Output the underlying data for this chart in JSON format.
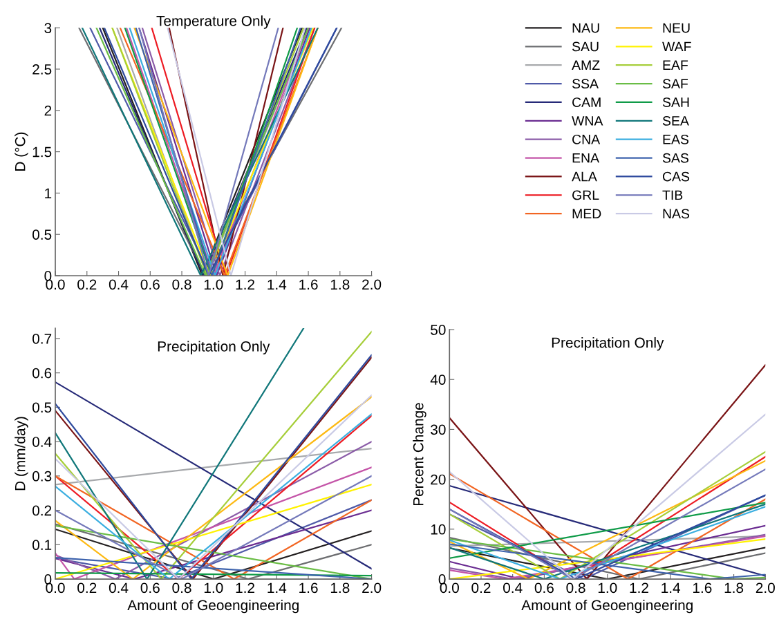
{
  "chart_data": [
    {
      "type": "line",
      "title": "Temperature Only",
      "ylabel": "D (°C)",
      "legend": "right",
      "grid": false,
      "xlim": [
        0,
        2
      ],
      "ylim": [
        0,
        3
      ],
      "xticks": [
        {
          "value": 0,
          "label": "0.0"
        },
        {
          "value": 0.2,
          "label": "0.2"
        },
        {
          "value": 0.4,
          "label": "0.4"
        },
        {
          "value": 0.6,
          "label": "0.6"
        },
        {
          "value": 0.8,
          "label": "0.8"
        },
        {
          "value": 1.0,
          "label": "1.0"
        },
        {
          "value": 1.2,
          "label": "1.2"
        },
        {
          "value": 1.4,
          "label": "1.4"
        },
        {
          "value": 1.6,
          "label": "1.6"
        },
        {
          "value": 1.8,
          "label": "1.8"
        },
        {
          "value": 2.0,
          "label": "2.0"
        }
      ],
      "yticks": [
        0,
        0.5,
        1,
        1.5,
        2,
        2.5,
        3
      ],
      "series": [
        {
          "name": "NAU",
          "color": "#231f20",
          "x": [
            0.3,
            0.93,
            1.56
          ],
          "values": [
            3,
            0,
            3
          ]
        },
        {
          "name": "SAU",
          "color": "#6d6e71",
          "x": [
            0.15,
            0.95,
            1.81
          ],
          "values": [
            3,
            0,
            3
          ]
        },
        {
          "name": "AMZ",
          "color": "#a7a9ac",
          "x": [
            0.39,
            0.96,
            1.6
          ],
          "values": [
            3,
            0,
            3
          ]
        },
        {
          "name": "SSA",
          "color": "#4f5aa8",
          "x": [
            0.22,
            0.98,
            1.78
          ],
          "values": [
            3,
            0,
            3
          ]
        },
        {
          "name": "CAM",
          "color": "#262a78",
          "x": [
            0.28,
            0.94,
            1.59
          ],
          "values": [
            3,
            0,
            3
          ]
        },
        {
          "name": "WNA",
          "color": "#6a2c91",
          "x": [
            0.53,
            1.02,
            1.61
          ],
          "values": [
            3,
            0,
            3
          ]
        },
        {
          "name": "CNA",
          "color": "#8b5ca8",
          "x": [
            0.55,
            1.04,
            1.64
          ],
          "values": [
            3,
            0,
            3
          ]
        },
        {
          "name": "ENA",
          "color": "#c455a8",
          "x": [
            0.45,
            1.0,
            1.6
          ],
          "values": [
            3,
            0,
            3
          ]
        },
        {
          "name": "ALA",
          "color": "#7a1416",
          "x": [
            0.72,
            1.06,
            1.44
          ],
          "values": [
            3,
            0,
            3
          ]
        },
        {
          "name": "GRL",
          "color": "#ed1c24",
          "x": [
            0.61,
            1.08,
            1.64
          ],
          "values": [
            3,
            0,
            3
          ]
        },
        {
          "name": "MED",
          "color": "#f26522",
          "x": [
            0.41,
            1.07,
            1.66
          ],
          "values": [
            3,
            0,
            3
          ]
        },
        {
          "name": "NEU",
          "color": "#fdb913",
          "x": [
            0.5,
            1.09,
            1.66
          ],
          "values": [
            3,
            0,
            3
          ]
        },
        {
          "name": "WAF",
          "color": "#fff200",
          "x": [
            0.36,
            0.98,
            1.63
          ],
          "values": [
            3,
            0,
            3
          ]
        },
        {
          "name": "EAF",
          "color": "#a6ce39",
          "x": [
            0.36,
            0.96,
            1.57
          ],
          "values": [
            3,
            0,
            3
          ]
        },
        {
          "name": "SAF",
          "color": "#6abd45",
          "x": [
            0.26,
            0.95,
            1.6
          ],
          "values": [
            3,
            0,
            3
          ]
        },
        {
          "name": "SAH",
          "color": "#0f9b48",
          "x": [
            0.44,
            0.99,
            1.53
          ],
          "values": [
            3,
            0,
            3
          ]
        },
        {
          "name": "SEA",
          "color": "#10777a",
          "x": [
            0.17,
            0.92,
            1.66
          ],
          "values": [
            3,
            0,
            3
          ]
        },
        {
          "name": "EAS",
          "color": "#3aaee0",
          "x": [
            0.47,
            1.01,
            1.62
          ],
          "values": [
            3,
            0,
            3
          ]
        },
        {
          "name": "SAS",
          "color": "#3e63ad",
          "x": [
            0.51,
            0.99,
            1.55
          ],
          "values": [
            3,
            0,
            3
          ]
        },
        {
          "name": "CAS",
          "color": "#2e4a9e",
          "x": [
            0.31,
            0.97,
            1.78
          ],
          "values": [
            3,
            0,
            3
          ]
        },
        {
          "name": "TIB",
          "color": "#7479ba",
          "x": [
            0.53,
            0.97,
            1.41
          ],
          "values": [
            3,
            0,
            3
          ]
        },
        {
          "name": "NAS",
          "color": "#c9cae5",
          "x": [
            0.71,
            1.11,
            1.58
          ],
          "values": [
            3,
            0,
            3
          ]
        }
      ]
    },
    {
      "type": "line",
      "title": "Precipitation Only",
      "xlabel": "Amount of Geoengineering",
      "ylabel": "D (mm/day)",
      "grid": false,
      "xlim": [
        0,
        2
      ],
      "ylim": [
        0,
        0.73
      ],
      "xticks": [
        {
          "value": 0,
          "label": "0.0"
        },
        {
          "value": 0.2,
          "label": "0.2"
        },
        {
          "value": 0.4,
          "label": "0.4"
        },
        {
          "value": 0.6,
          "label": "0.6"
        },
        {
          "value": 0.8,
          "label": "0.8"
        },
        {
          "value": 1.0,
          "label": "1.0"
        },
        {
          "value": 1.2,
          "label": "1.2"
        },
        {
          "value": 1.4,
          "label": "1.4"
        },
        {
          "value": 1.6,
          "label": "1.6"
        },
        {
          "value": 1.8,
          "label": "1.8"
        },
        {
          "value": 2.0,
          "label": "2.0"
        }
      ],
      "yticks": [
        0,
        0.1,
        0.2,
        0.3,
        0.4,
        0.5,
        0.6,
        0.7
      ],
      "series": [
        {
          "color": "#231f20",
          "x": [
            0,
            1.0,
            2
          ],
          "values": [
            0.145,
            0,
            0.14
          ]
        },
        {
          "color": "#6d6e71",
          "x": [
            0,
            1.22,
            2
          ],
          "values": [
            0.16,
            0,
            0.1
          ]
        },
        {
          "color": "#a7a9ac",
          "x": [
            0,
            2
          ],
          "values": [
            0.275,
            0.38
          ]
        },
        {
          "color": "#4f5aa8",
          "x": [
            0,
            0.75,
            2
          ],
          "values": [
            0.06,
            0,
            0.23
          ]
        },
        {
          "color": "#262a78",
          "x": [
            0,
            2
          ],
          "values": [
            0.573,
            0.03
          ]
        },
        {
          "color": "#6a2c91",
          "x": [
            0,
            0.5,
            2
          ],
          "values": [
            0.06,
            0,
            0.2
          ]
        },
        {
          "color": "#8b5ca8",
          "x": [
            0,
            0.38,
            2
          ],
          "values": [
            0.07,
            0,
            0.4
          ]
        },
        {
          "color": "#c455a8",
          "x": [
            0,
            0.12,
            2
          ],
          "values": [
            0.075,
            0,
            0.325
          ]
        },
        {
          "color": "#7a1416",
          "x": [
            0,
            0.87,
            2
          ],
          "values": [
            0.49,
            0,
            0.645
          ]
        },
        {
          "color": "#ed1c24",
          "x": [
            0,
            0.78,
            2
          ],
          "values": [
            0.3,
            0,
            0.475
          ]
        },
        {
          "color": "#f26522",
          "x": [
            0,
            1.13,
            2
          ],
          "values": [
            0.3,
            0,
            0.23
          ]
        },
        {
          "color": "#fdb913",
          "x": [
            0,
            0.49,
            2
          ],
          "values": [
            0.17,
            0,
            0.53
          ]
        },
        {
          "color": "#fff200",
          "x": [
            0,
            2
          ],
          "values": [
            0.0,
            0.275
          ]
        },
        {
          "color": "#a6ce39",
          "x": [
            0,
            0.67,
            2
          ],
          "values": [
            0.365,
            0,
            0.72
          ]
        },
        {
          "color": "#6abd45",
          "x": [
            0,
            2
          ],
          "values": [
            0.155,
            0.0
          ]
        },
        {
          "color": "#0f9b48",
          "x": [
            0,
            2
          ],
          "values": [
            0.018,
            0.01
          ]
        },
        {
          "color": "#10777a",
          "x": [
            0,
            0.58,
            1.57
          ],
          "values": [
            0.425,
            0,
            0.73
          ]
        },
        {
          "color": "#3aaee0",
          "x": [
            0,
            0.72,
            2
          ],
          "values": [
            0.27,
            0,
            0.48
          ]
        },
        {
          "color": "#3e63ad",
          "x": [
            0,
            2
          ],
          "values": [
            0.062,
            0.0
          ]
        },
        {
          "color": "#2e4a9e",
          "x": [
            0,
            0.86,
            2
          ],
          "values": [
            0.51,
            0,
            0.652
          ]
        },
        {
          "color": "#7479ba",
          "x": [
            0,
            0.8,
            2
          ],
          "values": [
            0.2,
            0,
            0.3
          ]
        },
        {
          "color": "#c9cae5",
          "x": [
            0,
            0.78,
            2
          ],
          "values": [
            0.35,
            0,
            0.535
          ]
        }
      ]
    },
    {
      "type": "line",
      "title": "Precipitation Only",
      "xlabel": "Amount of Geoengineering",
      "ylabel": "Percent Change",
      "grid": false,
      "xlim": [
        0,
        2
      ],
      "ylim": [
        0,
        50
      ],
      "xticks": [
        {
          "value": 0,
          "label": "0.0"
        },
        {
          "value": 0.2,
          "label": "0.2"
        },
        {
          "value": 0.4,
          "label": "0.4"
        },
        {
          "value": 0.6,
          "label": "0.6"
        },
        {
          "value": 0.8,
          "label": "0.8"
        },
        {
          "value": 1.0,
          "label": "1.0"
        },
        {
          "value": 1.2,
          "label": "1.2"
        },
        {
          "value": 1.4,
          "label": "1.4"
        },
        {
          "value": 1.6,
          "label": "1.6"
        },
        {
          "value": 1.8,
          "label": "1.8"
        },
        {
          "value": 2.0,
          "label": "2.0"
        }
      ],
      "yticks": [
        0,
        10,
        20,
        30,
        40,
        50
      ],
      "series": [
        {
          "color": "#231f20",
          "x": [
            0,
            1.0,
            2
          ],
          "values": [
            6.2,
            0,
            6.3
          ]
        },
        {
          "color": "#6d6e71",
          "x": [
            0,
            1.2,
            2
          ],
          "values": [
            8.3,
            0,
            5.2
          ]
        },
        {
          "color": "#a7a9ac",
          "x": [
            0,
            2
          ],
          "values": [
            6.6,
            8.6
          ]
        },
        {
          "color": "#4f5aa8",
          "x": [
            0,
            0.85,
            2
          ],
          "values": [
            13,
            0,
            16.8
          ]
        },
        {
          "color": "#262a78",
          "x": [
            0,
            2
          ],
          "values": [
            18.7,
            0.6
          ]
        },
        {
          "color": "#6a2c91",
          "x": [
            0,
            0.45,
            2
          ],
          "values": [
            3.5,
            0,
            10.7
          ]
        },
        {
          "color": "#8b5ca8",
          "x": [
            0,
            0.4,
            2
          ],
          "values": [
            2.2,
            0,
            8.9
          ]
        },
        {
          "color": "#c455a8",
          "x": [
            0,
            0.35,
            2
          ],
          "values": [
            1.8,
            0,
            8.6
          ]
        },
        {
          "color": "#7a1416",
          "x": [
            0,
            0.87,
            2
          ],
          "values": [
            32.3,
            0,
            42.9
          ]
        },
        {
          "color": "#ed1c24",
          "x": [
            0,
            0.78,
            2
          ],
          "values": [
            15.4,
            0,
            24.5
          ]
        },
        {
          "color": "#f26522",
          "x": [
            0,
            1.13,
            2
          ],
          "values": [
            21.1,
            0,
            16
          ]
        },
        {
          "color": "#fdb913",
          "x": [
            0,
            0.5,
            2
          ],
          "values": [
            7.5,
            0,
            23.7
          ]
        },
        {
          "color": "#fff200",
          "x": [
            0,
            2
          ],
          "values": [
            0,
            8.0
          ]
        },
        {
          "color": "#a6ce39",
          "x": [
            0,
            0.7,
            2
          ],
          "values": [
            13,
            0,
            25.5
          ]
        },
        {
          "color": "#6abd45",
          "x": [
            0,
            1.8,
            2
          ],
          "values": [
            8.0,
            0,
            0.3
          ]
        },
        {
          "color": "#0f9b48",
          "x": [
            0,
            2
          ],
          "values": [
            4.2,
            15.3
          ]
        },
        {
          "color": "#10777a",
          "x": [
            0,
            0.6,
            2
          ],
          "values": [
            6.3,
            0,
            15
          ]
        },
        {
          "color": "#3aaee0",
          "x": [
            0,
            0.7,
            2
          ],
          "values": [
            7.8,
            0,
            14.5
          ]
        },
        {
          "color": "#3e63ad",
          "x": [
            0,
            1.65,
            2
          ],
          "values": [
            7,
            0,
            0.9
          ]
        },
        {
          "color": "#2e4a9e",
          "x": [
            0,
            0.8,
            2
          ],
          "values": [
            14,
            0,
            16.8
          ]
        },
        {
          "color": "#7479ba",
          "x": [
            0,
            0.78,
            2
          ],
          "values": [
            14,
            0,
            22
          ]
        },
        {
          "color": "#c9cae5",
          "x": [
            0,
            0.78,
            2
          ],
          "values": [
            21.5,
            0,
            33
          ]
        }
      ]
    }
  ]
}
